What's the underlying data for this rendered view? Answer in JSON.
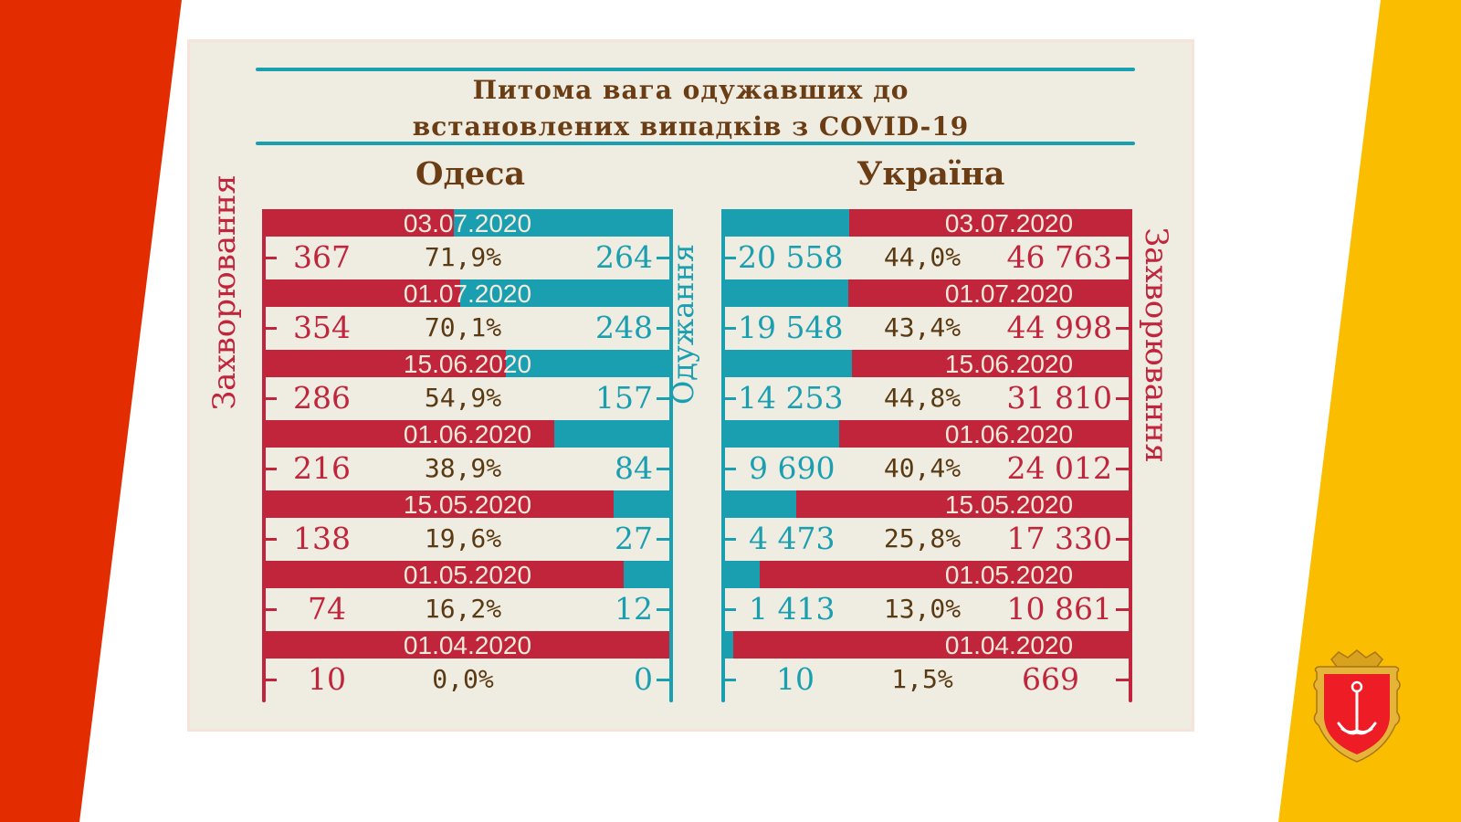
{
  "slide": {
    "colors": {
      "left_stripe": "#e32d00",
      "right_stripe": "#fbbd00",
      "card_bg": "#efece2",
      "accent_teal": "#1a9fb0",
      "accent_red": "#c0253b",
      "title_brown": "#6b3d14"
    },
    "emblem": "odesa-coat-of-arms-icon"
  },
  "header": {
    "title_line1": "Питома вага одужавших до",
    "title_line2": "встановлених випадків з COVID-19"
  },
  "odesa": {
    "region_label": "Одеса",
    "axis_left_label": "Захворювання",
    "axis_right_label": "Одужання",
    "rows": [
      {
        "date": "03.07.2020",
        "cases": "367",
        "pct": "71,9%",
        "recovered": "264"
      },
      {
        "date": "01.07.2020",
        "cases": "354",
        "pct": "70,1%",
        "recovered": "248"
      },
      {
        "date": "15.06.2020",
        "cases": "286",
        "pct": "54,9%",
        "recovered": "157"
      },
      {
        "date": "01.06.2020",
        "cases": "216",
        "pct": "38,9%",
        "recovered": "84"
      },
      {
        "date": "15.05.2020",
        "cases": "138",
        "pct": "19,6%",
        "recovered": "27"
      },
      {
        "date": "01.05.2020",
        "cases": "74",
        "pct": "16,2%",
        "recovered": "12"
      },
      {
        "date": "01.04.2020",
        "cases": "10",
        "pct": "0,0%",
        "recovered": "0"
      }
    ]
  },
  "ukraine": {
    "region_label": "Україна",
    "axis_right_label": "Захворювання",
    "rows": [
      {
        "date": "03.07.2020",
        "recovered": "20 558",
        "pct": "44,0%",
        "cases": "46 763"
      },
      {
        "date": "01.07.2020",
        "recovered": "19 548",
        "pct": "43,4%",
        "cases": "44 998"
      },
      {
        "date": "15.06.2020",
        "recovered": "14 253",
        "pct": "44,8%",
        "cases": "31 810"
      },
      {
        "date": "01.06.2020",
        "recovered": "9 690",
        "pct": "40,4%",
        "cases": "24 012"
      },
      {
        "date": "15.05.2020",
        "recovered": "4 473",
        "pct": "25,8%",
        "cases": "17 330"
      },
      {
        "date": "01.05.2020",
        "recovered": "1 413",
        "pct": "13,0%",
        "cases": "10 861"
      },
      {
        "date": "01.04.2020",
        "recovered": "10",
        "pct": "1,5%",
        "cases": "669"
      }
    ]
  },
  "chart_data": [
    {
      "type": "bar",
      "title": "Питома вага одужавших до встановлених випадків з COVID-19 — Одеса",
      "categories": [
        "03.07.2020",
        "01.07.2020",
        "15.06.2020",
        "01.06.2020",
        "15.05.2020",
        "01.05.2020",
        "01.04.2020"
      ],
      "series": [
        {
          "name": "Захворювання",
          "values": [
            367,
            354,
            286,
            216,
            138,
            74,
            10
          ]
        },
        {
          "name": "Одужання",
          "values": [
            264,
            248,
            157,
            84,
            27,
            12,
            0
          ]
        },
        {
          "name": "Питома вага, %",
          "values": [
            71.9,
            70.1,
            54.9,
            38.9,
            19.6,
            16.2,
            0.0
          ]
        }
      ],
      "xlabel": "",
      "ylabel": "",
      "stacked_share_bar": true
    },
    {
      "type": "bar",
      "title": "Питома вага одужавших до встановлених випадків з COVID-19 — Україна",
      "categories": [
        "03.07.2020",
        "01.07.2020",
        "15.06.2020",
        "01.06.2020",
        "15.05.2020",
        "01.05.2020",
        "01.04.2020"
      ],
      "series": [
        {
          "name": "Одужання",
          "values": [
            20558,
            19548,
            14253,
            9690,
            4473,
            1413,
            10
          ]
        },
        {
          "name": "Захворювання",
          "values": [
            46763,
            44998,
            31810,
            24012,
            17330,
            10861,
            669
          ]
        },
        {
          "name": "Питома вага, %",
          "values": [
            44.0,
            43.4,
            44.8,
            40.4,
            25.8,
            13.0,
            1.5
          ]
        }
      ],
      "xlabel": "",
      "ylabel": "",
      "stacked_share_bar": true
    }
  ]
}
